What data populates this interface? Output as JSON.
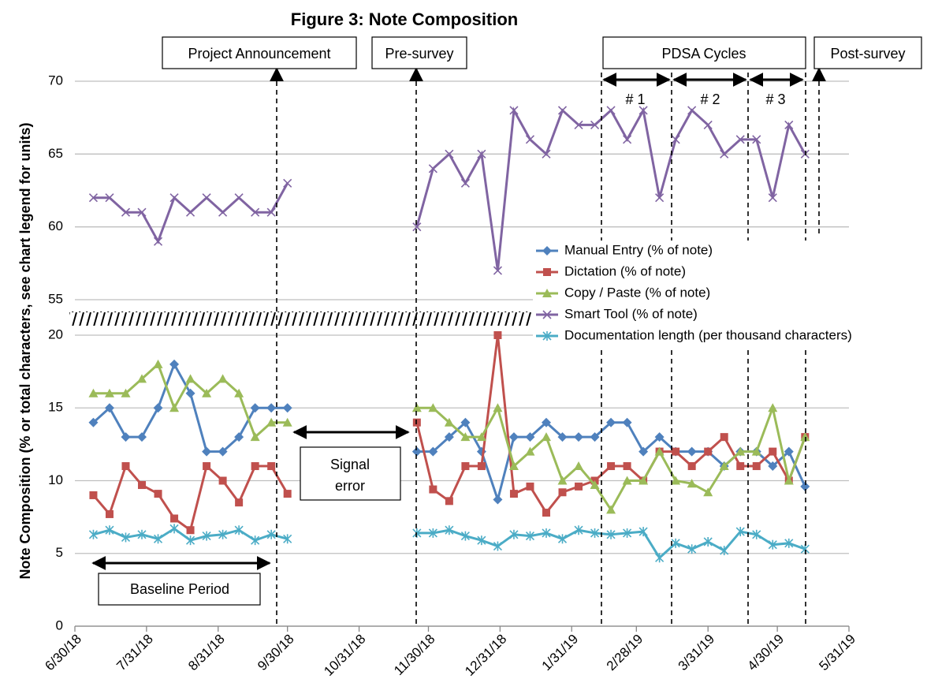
{
  "chart_data": {
    "type": "line",
    "title": "Figure 3: Note Composition",
    "y_label": "Note Composition (% or total characters, see chart legend for units)",
    "xlim": [
      "6/30/18",
      "5/31/19"
    ],
    "xticks": [
      "6/30/18",
      "7/31/18",
      "8/31/18",
      "9/30/18",
      "10/31/18",
      "11/30/18",
      "12/31/18",
      "1/31/19",
      "2/28/19",
      "3/31/19",
      "4/30/19",
      "5/31/19"
    ],
    "ylim": [
      0,
      70
    ],
    "axis_break": [
      20,
      55
    ],
    "yticks": [
      0,
      5,
      10,
      15,
      20,
      55,
      60,
      65,
      70
    ],
    "grid": true,
    "x": [
      "7/8/18",
      "7/15/18",
      "7/22/18",
      "7/29/18",
      "8/5/18",
      "8/12/18",
      "8/19/18",
      "8/26/18",
      "9/2/18",
      "9/9/18",
      "9/16/18",
      "9/23/18",
      "9/30/18",
      "11/25/18",
      "12/2/18",
      "12/9/18",
      "12/16/18",
      "12/23/18",
      "12/30/18",
      "1/6/19",
      "1/13/19",
      "1/20/19",
      "1/27/19",
      "2/3/19",
      "2/10/19",
      "2/17/19",
      "2/24/19",
      "3/3/19",
      "3/10/19",
      "3/17/19",
      "3/24/19",
      "3/31/19",
      "4/7/19",
      "4/14/19",
      "4/21/19",
      "4/28/19",
      "5/5/19",
      "5/12/19"
    ],
    "series": [
      {
        "name": "Manual Entry (% of note)",
        "color": "#4f81bd",
        "marker": "diamond",
        "values": [
          14,
          15,
          13,
          13,
          15,
          18,
          16,
          12,
          12,
          13,
          15,
          15,
          15,
          12,
          12,
          13,
          14,
          12,
          8.7,
          13,
          13,
          14,
          13,
          13,
          13,
          14,
          14,
          12,
          13,
          12,
          12,
          12,
          11,
          12,
          12,
          11,
          12,
          9.6
        ]
      },
      {
        "name": "Dictation (% of note)",
        "color": "#c0504d",
        "marker": "square",
        "values": [
          9,
          7.7,
          11,
          9.7,
          9.1,
          7.4,
          6.6,
          11,
          10,
          8.5,
          11,
          11,
          9.1,
          14,
          9.4,
          8.6,
          11,
          11,
          20,
          9.1,
          9.6,
          7.8,
          9.2,
          9.6,
          10,
          11,
          11,
          10,
          12,
          12,
          11,
          12,
          13,
          11,
          11,
          12,
          10,
          13
        ]
      },
      {
        "name": "Copy / Paste (% of note)",
        "color": "#9bbb59",
        "marker": "triangle",
        "values": [
          16,
          16,
          16,
          17,
          18,
          15,
          17,
          16,
          17,
          16,
          13,
          14,
          14,
          15,
          15,
          14,
          13,
          13,
          15,
          11,
          12,
          13,
          10,
          11,
          9.7,
          8,
          10,
          10,
          12,
          10,
          9.8,
          9.2,
          11,
          12,
          12,
          15,
          10,
          13
        ]
      },
      {
        "name": "Smart Tool (% of note)",
        "color": "#8064a2",
        "marker": "x",
        "values": [
          62,
          62,
          61,
          61,
          59,
          62,
          61,
          62,
          61,
          62,
          61,
          61,
          63,
          60,
          64,
          65,
          63,
          65,
          57,
          68,
          66,
          65,
          68,
          67,
          67,
          68,
          66,
          68,
          62,
          66,
          68,
          67,
          65,
          66,
          66,
          62,
          67,
          65
        ]
      },
      {
        "name": "Documentation length (per thousand characters)",
        "color": "#4bacc6",
        "marker": "star",
        "values": [
          6.3,
          6.6,
          6.1,
          6.3,
          6,
          6.7,
          5.9,
          6.2,
          6.3,
          6.6,
          5.9,
          6.3,
          6,
          6.4,
          6.4,
          6.6,
          6.2,
          5.9,
          5.5,
          6.3,
          6.2,
          6.4,
          6,
          6.6,
          6.4,
          6.3,
          6.4,
          6.5,
          4.7,
          5.7,
          5.3,
          5.8,
          5.2,
          6.5,
          6.3,
          5.6,
          5.7,
          5.3
        ]
      }
    ],
    "annotations": {
      "project_announcement": "Project Announcement",
      "pre_survey": "Pre-survey",
      "pdsa_cycles": "PDSA Cycles",
      "post_survey": "Post-survey",
      "cycle_1": "# 1",
      "cycle_2": "# 2",
      "cycle_3": "# 3",
      "signal_error": [
        "Signal",
        "error"
      ],
      "baseline_period": "Baseline Period"
    }
  }
}
